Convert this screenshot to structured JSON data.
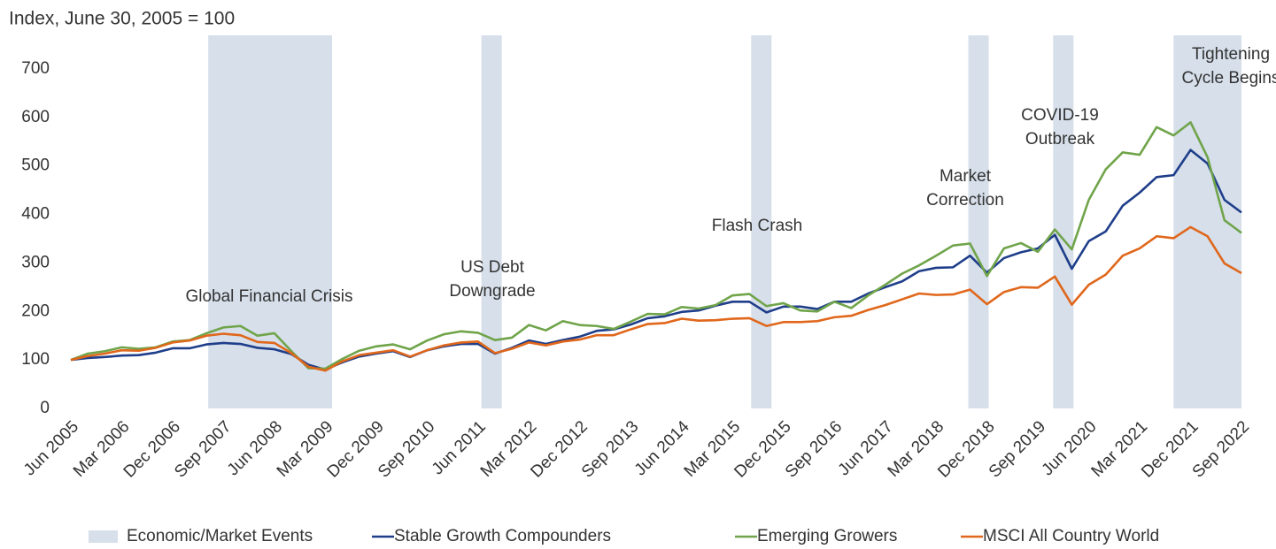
{
  "chart_data": {
    "type": "line",
    "title": "Index, June 30, 2005 = 100",
    "categories": [
      "Jun 2005",
      null,
      null,
      "Mar 2006",
      null,
      null,
      "Dec 2006",
      null,
      null,
      "Sep 2007",
      null,
      null,
      "Jun 2008",
      null,
      null,
      "Mar 2009",
      null,
      null,
      "Dec 2009",
      null,
      null,
      "Sep 2010",
      null,
      null,
      "Jun 2011",
      null,
      null,
      "Mar 2012",
      null,
      null,
      "Dec 2012",
      null,
      null,
      "Sep 2013",
      null,
      null,
      "Jun 2014",
      null,
      null,
      "Mar 2015",
      null,
      null,
      "Dec 2015",
      null,
      null,
      "Sep 2016",
      null,
      null,
      "Jun 2017",
      null,
      null,
      "Mar 2018",
      null,
      null,
      "Dec 2018",
      null,
      null,
      "Sep 2019",
      null,
      null,
      "Jun 2020",
      null,
      null,
      "Mar 2021",
      null,
      null,
      "Dec 2021",
      null,
      null,
      "Sep 2022"
    ],
    "series": [
      {
        "name": "Stable Growth Compounders",
        "color": "#1f3e8a",
        "values": [
          100,
          104,
          106,
          109,
          110,
          115,
          124,
          124,
          132,
          135,
          133,
          125,
          122,
          112,
          90,
          80,
          95,
          107,
          113,
          118,
          106,
          120,
          128,
          133,
          133,
          113,
          125,
          140,
          133,
          141,
          148,
          160,
          163,
          173,
          186,
          190,
          199,
          202,
          212,
          220,
          220,
          198,
          210,
          210,
          205,
          220,
          220,
          237,
          250,
          262,
          283,
          290,
          291,
          315,
          280,
          310,
          322,
          330,
          358,
          288,
          345,
          365,
          418,
          445,
          477,
          481,
          533,
          505,
          430,
          404
        ]
      },
      {
        "name": "Emerging Growers",
        "color": "#70a44a",
        "values": [
          100,
          113,
          118,
          126,
          123,
          126,
          138,
          141,
          155,
          167,
          170,
          150,
          155,
          118,
          83,
          82,
          102,
          119,
          128,
          132,
          122,
          140,
          153,
          159,
          156,
          141,
          146,
          172,
          161,
          180,
          172,
          170,
          164,
          179,
          195,
          194,
          209,
          206,
          213,
          233,
          236,
          211,
          217,
          202,
          200,
          220,
          207,
          233,
          255,
          278,
          295,
          315,
          336,
          340,
          273,
          330,
          341,
          323,
          369,
          328,
          430,
          493,
          528,
          523,
          580,
          563,
          590,
          518,
          388,
          362
        ]
      },
      {
        "name": "MSCI All Country World",
        "color": "#e0671b",
        "values": [
          100,
          108,
          113,
          120,
          119,
          125,
          136,
          140,
          150,
          154,
          151,
          137,
          135,
          114,
          86,
          78,
          97,
          110,
          115,
          120,
          107,
          120,
          130,
          136,
          138,
          114,
          123,
          136,
          130,
          138,
          142,
          151,
          151,
          163,
          174,
          176,
          185,
          181,
          182,
          185,
          186,
          170,
          178,
          178,
          180,
          188,
          191,
          203,
          213,
          225,
          237,
          234,
          235,
          245,
          215,
          240,
          250,
          249,
          272,
          214,
          255,
          276,
          315,
          330,
          355,
          351,
          374,
          355,
          299,
          279
        ]
      }
    ],
    "events_name": "Economic/Market Events",
    "events_color": "#d6dfea",
    "events": [
      {
        "label": [
          "Global Financial Crisis"
        ],
        "start": 8.1,
        "end": 15.4
      },
      {
        "label": [
          "US Debt",
          "Downgrade"
        ],
        "start": 24.2,
        "end": 25.4
      },
      {
        "label": [
          "Flash Crash"
        ],
        "start": 40.1,
        "end": 41.3
      },
      {
        "label": [
          "Market",
          "Correction"
        ],
        "start": 52.9,
        "end": 54.1
      },
      {
        "label": [
          "COVID-19",
          "Outbreak"
        ],
        "start": 57.9,
        "end": 59.1
      },
      {
        "label": [
          "Tightening",
          "Cycle Begins"
        ],
        "start": 65.0,
        "end": 69.0
      }
    ],
    "ylim": [
      0,
      700
    ],
    "yticks": [
      0,
      100,
      200,
      300,
      400,
      500,
      600,
      700
    ],
    "grid": false,
    "legend": "bottom"
  }
}
